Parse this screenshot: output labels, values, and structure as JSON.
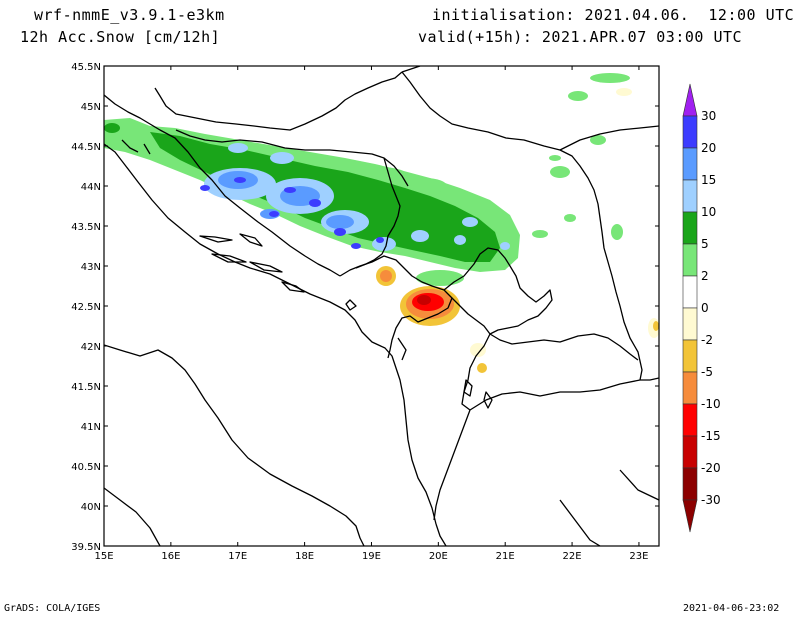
{
  "header": {
    "model": "wrf-nmmE_v3.9.1-e3km",
    "field": "12h Acc.Snow [cm/12h]",
    "init": "initialisation: 2021.04.06.  12:00 UTC",
    "valid": "valid(+15h): 2021.APR.07 03:00 UTC"
  },
  "footer": {
    "credit": "GrADS: COLA/IGES",
    "timestamp": "2021-04-06-23:02"
  },
  "axes": {
    "lon_labels": [
      "15E",
      "16E",
      "17E",
      "18E",
      "19E",
      "20E",
      "21E",
      "22E",
      "23E"
    ],
    "lat_labels": [
      "45.5N",
      "45N",
      "44.5N",
      "44N",
      "43.5N",
      "43N",
      "42.5N",
      "42N",
      "41.5N",
      "41N",
      "40.5N",
      "40N",
      "39.5N"
    ]
  },
  "legend": {
    "labels": [
      "30",
      "20",
      "15",
      "10",
      "5",
      "2",
      "0",
      "-2",
      "-5",
      "-10",
      "-15",
      "-20",
      "-30"
    ],
    "colors": [
      "#a020f0",
      "#3c3cff",
      "#5a9bff",
      "#9fd0ff",
      "#1aa51a",
      "#78e678",
      "#ffffff",
      "#fffad2",
      "#f2c438",
      "#f68c3c",
      "#ff0000",
      "#c80000",
      "#8c0000"
    ]
  },
  "map_extent": {
    "lon_min": 15,
    "lon_max": 23.3,
    "lat_min": 39.5,
    "lat_max": 45.5
  }
}
